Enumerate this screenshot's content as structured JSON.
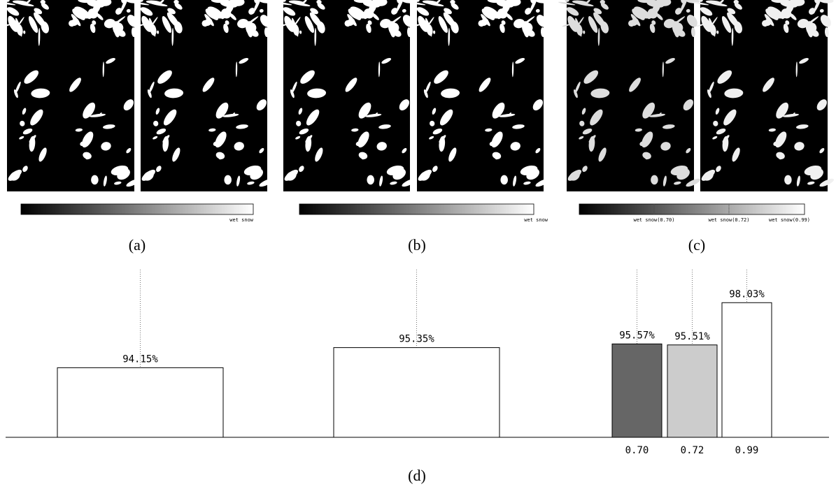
{
  "panels": [
    {
      "label": "(a)",
      "colorbar_labels": [
        "wet snow"
      ]
    },
    {
      "label": "(b)",
      "colorbar_labels": [
        "wet snow"
      ]
    },
    {
      "label": "(c)",
      "colorbar_labels": [
        "wet snow(0.70)",
        "wet snow(0.72)",
        "wet snow(0.99)"
      ]
    }
  ],
  "chart_data": {
    "type": "bar",
    "panel_label": "(d)",
    "categories": [
      null,
      null,
      "0.70",
      "0.72",
      "0.99"
    ],
    "values": [
      94.15,
      95.35,
      95.57,
      95.51,
      98.03
    ],
    "value_labels": [
      "94.15%",
      "95.35%",
      "95.57%",
      "95.51%",
      "98.03%"
    ],
    "colors": [
      "#ffffff",
      "#ffffff",
      "#666666",
      "#cccccc",
      "#ffffff"
    ],
    "ylim": [
      90,
      100
    ]
  }
}
